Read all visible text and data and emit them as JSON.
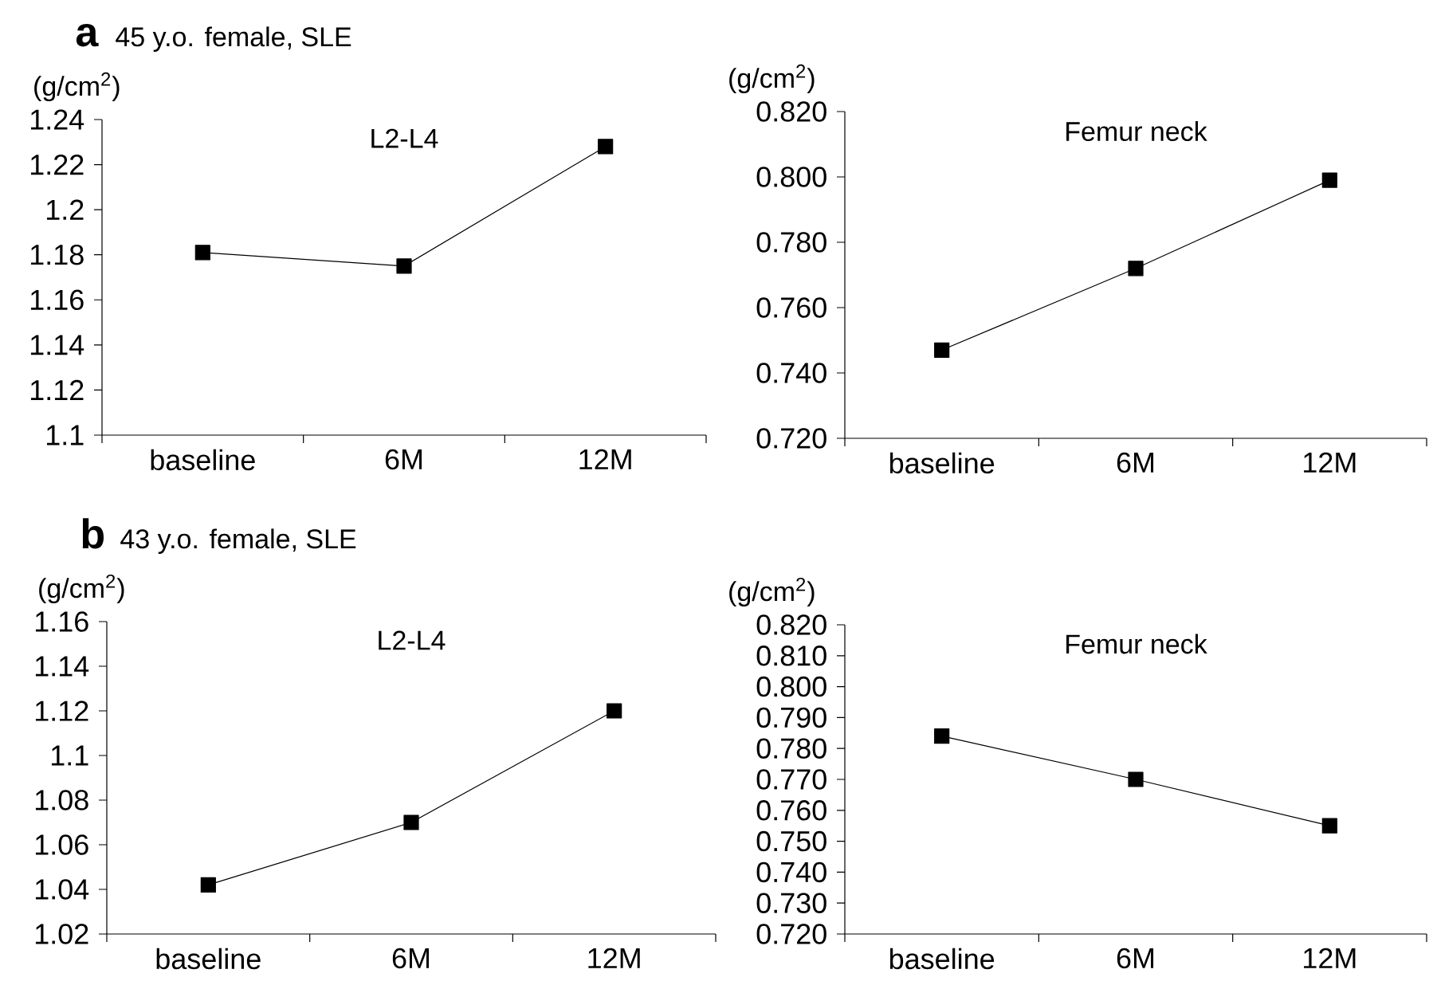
{
  "chart_data": [
    {
      "type": "line",
      "title": "L2-L4",
      "ylabel": "(g/cm$^{2}$)",
      "annotations": [
        "a",
        "45 y.o. female, SLE"
      ],
      "categories": [
        "baseline",
        "6M",
        "12M"
      ],
      "values": [
        1.181,
        1.175,
        1.228
      ],
      "color": "#000000",
      "marker": "square",
      "line_style": "solid",
      "ylim": [
        1.1,
        1.24
      ],
      "yticks": [
        1.1,
        1.12,
        1.14,
        1.16,
        1.18,
        1.2,
        1.22,
        1.24
      ]
    },
    {
      "type": "line",
      "title": "Femur neck",
      "ylabel": "(g/cm$^{2}$)",
      "categories": [
        "baseline",
        "6M",
        "12M"
      ],
      "values": [
        0.747,
        0.772,
        0.799
      ],
      "color": "#000000",
      "marker": "square",
      "line_style": "solid",
      "ylim": [
        0.72,
        0.82
      ],
      "yticks": [
        {
          "value": 0.72,
          "label": "0.720"
        },
        {
          "value": 0.74,
          "label": "0.740"
        },
        {
          "value": 0.76,
          "label": "0.760"
        },
        {
          "value": 0.78,
          "label": "0.780"
        },
        {
          "value": 0.8,
          "label": "0.800"
        },
        {
          "value": 0.82,
          "label": "0.820"
        }
      ]
    },
    {
      "type": "line",
      "title": "L2-L4",
      "ylabel": "(g/cm$^{2}$)",
      "annotations": [
        "b",
        "43 y.o. female, SLE"
      ],
      "categories": [
        "baseline",
        "6M",
        "12M"
      ],
      "values": [
        1.042,
        1.07,
        1.12
      ],
      "color": "#000000",
      "marker": "square",
      "line_style": "solid",
      "ylim": [
        1.02,
        1.16
      ],
      "yticks": [
        1.02,
        1.04,
        1.06,
        1.08,
        1.1,
        1.12,
        1.14,
        1.16
      ]
    },
    {
      "type": "line",
      "title": "Femur neck",
      "ylabel": "(g/cm$^{2}$)",
      "categories": [
        "baseline",
        "6M",
        "12M"
      ],
      "values": [
        0.784,
        0.77,
        0.755
      ],
      "color": "#000000",
      "marker": "square",
      "line_style": "solid",
      "ylim": [
        0.72,
        0.82
      ],
      "yticks": [
        {
          "value": 0.72,
          "label": "0.720"
        },
        {
          "value": 0.73,
          "label": "0.730"
        },
        {
          "value": 0.74,
          "label": "0.740"
        },
        {
          "value": 0.75,
          "label": "0.750"
        },
        {
          "value": 0.76,
          "label": "0.760"
        },
        {
          "value": 0.77,
          "label": "0.770"
        },
        {
          "value": 0.78,
          "label": "0.780"
        },
        {
          "value": 0.79,
          "label": "0.790"
        },
        {
          "value": 0.8,
          "label": "0.800"
        },
        {
          "value": 0.81,
          "label": "0.810"
        },
        {
          "value": 0.82,
          "label": "0.820"
        }
      ]
    }
  ]
}
